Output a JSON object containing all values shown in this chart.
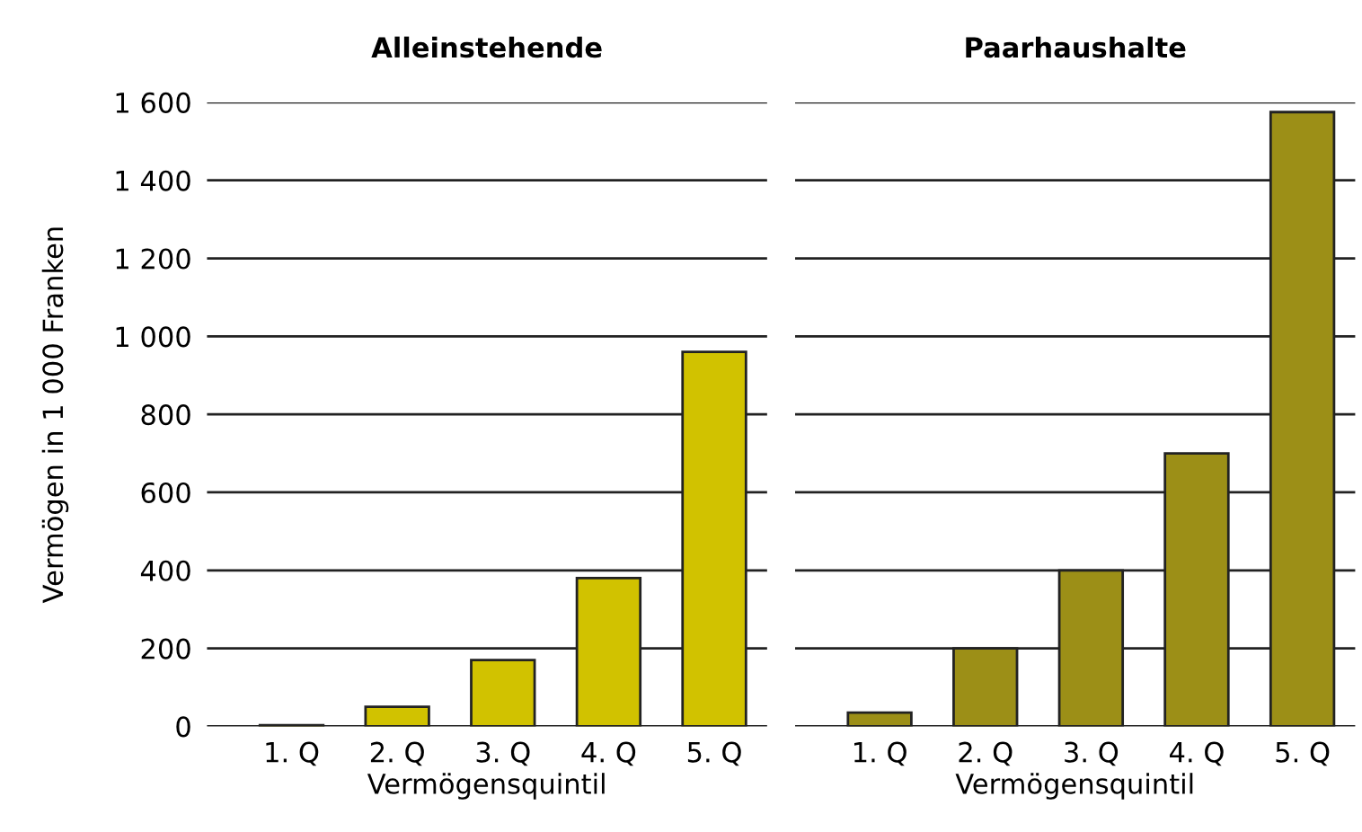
{
  "chart_data": [
    {
      "type": "bar",
      "title": "Alleinstehende",
      "xlabel": "Vermögensquintil",
      "ylabel": "Vermögen in 1 000 Franken",
      "categories": [
        "1. Q",
        "2. Q",
        "3. Q",
        "4. Q",
        "5. Q"
      ],
      "values": [
        3,
        50,
        170,
        380,
        960
      ],
      "color": "#d1c200",
      "ylim": [
        0,
        1600
      ],
      "yticks": [
        0,
        200,
        400,
        600,
        800,
        {
          "value": 1000,
          "label": "1 000"
        },
        {
          "value": 1200,
          "label": "1 200"
        },
        {
          "value": 1400,
          "label": "1 400"
        },
        {
          "value": 1600,
          "label": "1 600"
        }
      ],
      "grid": "y"
    },
    {
      "type": "bar",
      "title": "Paarhaushalte",
      "xlabel": "Vermögensquintil",
      "categories": [
        "1. Q",
        "2. Q",
        "3. Q",
        "4. Q",
        "5. Q"
      ],
      "values": [
        35,
        200,
        400,
        700,
        1575
      ],
      "color": "#9c8f17",
      "ylim": [
        0,
        1600
      ],
      "yticks": [
        0,
        200,
        400,
        600,
        800,
        1000,
        1200,
        1400,
        1600
      ],
      "grid": "y",
      "tick_labels": "x"
    }
  ]
}
